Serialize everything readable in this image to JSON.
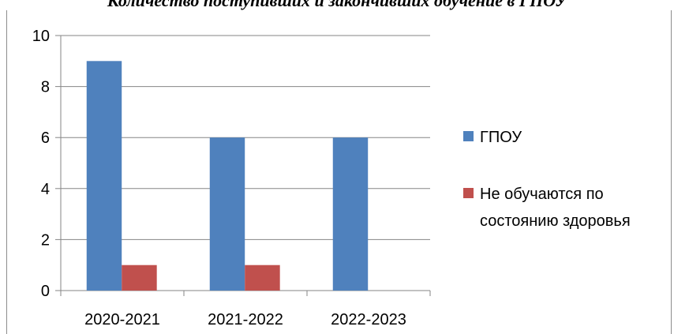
{
  "chart_data": {
    "type": "bar",
    "title": "Количество поступивших и закончивших  обучение в ГПОУ",
    "categories": [
      "2020-2021",
      "2021-2022",
      "2022-2023"
    ],
    "series": [
      {
        "name": "ГПОУ",
        "values": [
          9,
          6,
          6
        ],
        "color": "#4f81bd"
      },
      {
        "name": "Не обучаются по состоянию здоровья",
        "values": [
          1,
          1,
          null
        ],
        "color": "#c0504d"
      }
    ],
    "y_ticks": [
      "0",
      "2",
      "4",
      "6",
      "8",
      "10"
    ],
    "ylim": [
      0,
      10
    ],
    "grid": true,
    "legend_position": "right",
    "legend_lines": [
      [
        "ГПОУ"
      ],
      [
        "Не обучаются по",
        "состоянию здоровья"
      ]
    ]
  }
}
